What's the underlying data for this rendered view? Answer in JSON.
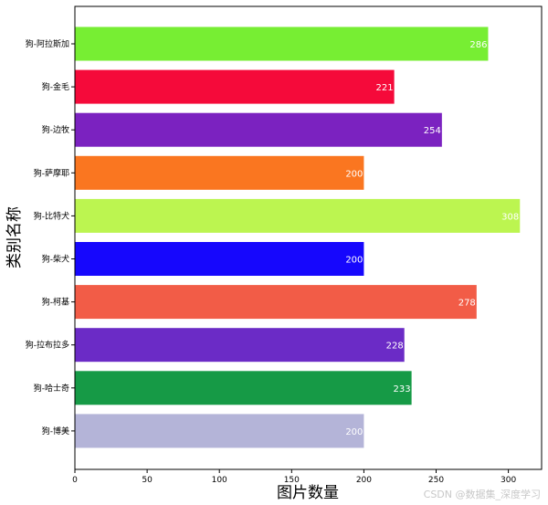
{
  "chart_data": {
    "type": "bar",
    "orientation": "horizontal",
    "categories": [
      "狗-阿拉斯加",
      "狗-金毛",
      "狗-边牧",
      "狗-萨摩耶",
      "狗-比特犬",
      "狗-柴犬",
      "狗-柯基",
      "狗-拉布拉多",
      "狗-哈士奇",
      "狗-博美"
    ],
    "values": [
      286,
      221,
      254,
      200,
      308,
      200,
      278,
      228,
      233,
      200
    ],
    "colors": [
      "#77ee33",
      "#f50a3a",
      "#7b22c0",
      "#fa7620",
      "#bcf550",
      "#1607fd",
      "#f25c47",
      "#6b2bc6",
      "#169a46",
      "#b4b4d8"
    ],
    "xlabel": "图片数量",
    "ylabel": "类别名称",
    "xticks": [
      0,
      50,
      100,
      150,
      200,
      250,
      300
    ],
    "xlim": [
      0,
      323
    ],
    "grid": false,
    "data_labels": true
  },
  "watermark": "CSDN @数据集_深度学习"
}
